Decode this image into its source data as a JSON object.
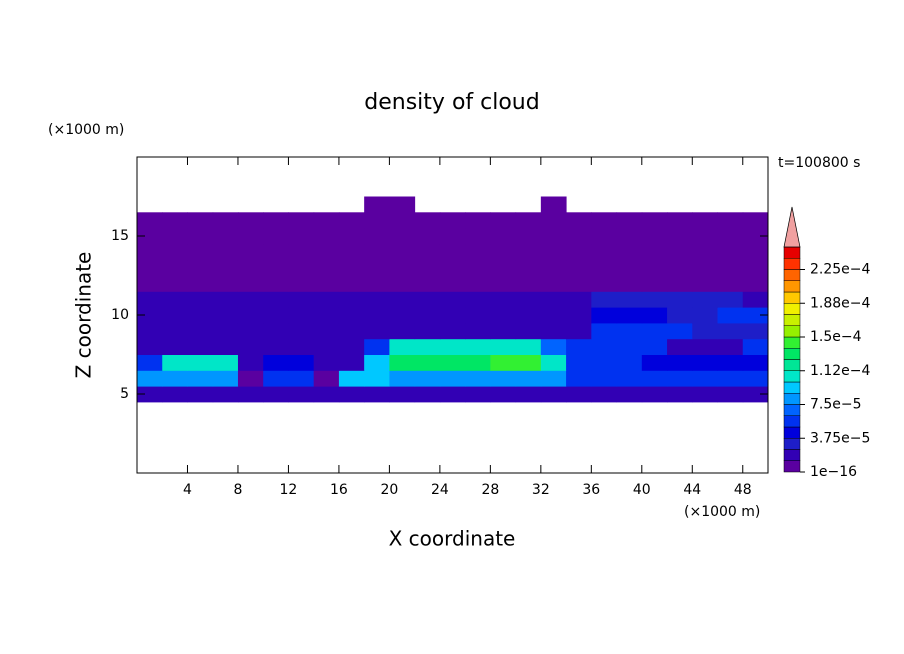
{
  "chart_data": {
    "type": "contour",
    "title": "density of cloud",
    "xlabel": "X coordinate",
    "ylabel": "Z coordinate",
    "xunit": "(×1000 m)",
    "yunit": "(×1000 m)",
    "annotation": "t=100800 s",
    "xlim": [
      0,
      50
    ],
    "ylim": [
      0,
      20
    ],
    "xticks": [
      4,
      8,
      12,
      16,
      20,
      24,
      28,
      32,
      36,
      40,
      44,
      48
    ],
    "yticks": [
      5,
      10,
      15
    ],
    "x": [
      1,
      3,
      5,
      7,
      9,
      11,
      13,
      15,
      17,
      19,
      21,
      23,
      25,
      27,
      29,
      31,
      33,
      35,
      37,
      39,
      41,
      43,
      45,
      47,
      49
    ],
    "z": [
      5,
      6,
      7,
      8,
      9,
      10,
      11,
      12,
      13,
      14,
      15,
      16,
      17
    ],
    "values": [
      [
        2e-05,
        2e-05,
        2e-05,
        2e-05,
        2e-05,
        2e-05,
        2e-05,
        2e-05,
        2e-05,
        2e-05,
        2e-05,
        2e-05,
        2e-05,
        2e-05,
        2e-05,
        2e-05,
        2e-05,
        2e-05,
        2e-05,
        2e-05,
        2e-05,
        2e-05,
        2e-05,
        2e-05,
        2e-05
      ],
      [
        8e-05,
        8e-05,
        8e-05,
        8e-05,
        5e-06,
        5e-05,
        5e-05,
        5e-06,
        9e-05,
        9e-05,
        8e-05,
        8e-05,
        8e-05,
        8e-05,
        8e-05,
        8e-05,
        8e-05,
        5e-05,
        5e-05,
        5e-05,
        5e-05,
        5e-05,
        5e-05,
        5e-05,
        5e-05
      ],
      [
        6e-05,
        0.00011,
        0.00011,
        0.00011,
        2e-05,
        4e-05,
        4e-05,
        2e-05,
        2e-05,
        9e-05,
        0.000125,
        0.000125,
        0.000125,
        0.000125,
        0.00014,
        0.00014,
        0.0001,
        6e-05,
        6e-05,
        6e-05,
        4e-05,
        4e-05,
        4e-05,
        4e-05,
        4e-05
      ],
      [
        2e-05,
        2e-05,
        2e-05,
        2e-05,
        2e-05,
        2e-05,
        2e-05,
        2e-05,
        2e-05,
        5e-05,
        0.0001,
        0.0001,
        0.0001,
        0.0001,
        0.0001,
        0.0001,
        7e-05,
        5e-05,
        5e-05,
        5e-05,
        5e-05,
        2e-05,
        2e-05,
        2e-05,
        6e-05
      ],
      [
        2e-05,
        2e-05,
        2e-05,
        2e-05,
        2e-05,
        2e-05,
        2e-05,
        2e-05,
        2e-05,
        2e-05,
        2e-05,
        2e-05,
        2e-05,
        2e-05,
        2e-05,
        2e-05,
        2e-05,
        2e-05,
        5e-05,
        5e-05,
        5e-05,
        5e-05,
        3e-05,
        3e-05,
        3e-05
      ],
      [
        2e-05,
        2e-05,
        2e-05,
        2e-05,
        2e-05,
        2e-05,
        2e-05,
        2e-05,
        2e-05,
        2e-05,
        2e-05,
        2e-05,
        2e-05,
        2e-05,
        2e-05,
        2e-05,
        2e-05,
        2e-05,
        4e-05,
        4e-05,
        4e-05,
        3e-05,
        3e-05,
        6e-05,
        6e-05
      ],
      [
        2e-05,
        2e-05,
        2e-05,
        2e-05,
        2e-05,
        2e-05,
        2e-05,
        2e-05,
        2e-05,
        2e-05,
        2e-05,
        2e-05,
        2e-05,
        2e-05,
        2e-05,
        2e-05,
        2e-05,
        2e-05,
        3e-05,
        3e-05,
        3e-05,
        3e-05,
        3e-05,
        3e-05,
        2e-05
      ],
      [
        5e-06,
        5e-06,
        5e-06,
        5e-06,
        5e-06,
        5e-06,
        5e-06,
        5e-06,
        5e-06,
        5e-06,
        5e-06,
        5e-06,
        5e-06,
        5e-06,
        5e-06,
        5e-06,
        5e-06,
        5e-06,
        5e-06,
        5e-06,
        5e-06,
        5e-06,
        5e-06,
        5e-06,
        5e-06
      ],
      [
        5e-06,
        5e-06,
        5e-06,
        5e-06,
        5e-06,
        5e-06,
        5e-06,
        5e-06,
        5e-06,
        5e-06,
        5e-06,
        5e-06,
        5e-06,
        5e-06,
        5e-06,
        5e-06,
        5e-06,
        5e-06,
        5e-06,
        5e-06,
        5e-06,
        5e-06,
        5e-06,
        5e-06,
        5e-06
      ],
      [
        5e-06,
        5e-06,
        5e-06,
        5e-06,
        5e-06,
        5e-06,
        5e-06,
        5e-06,
        5e-06,
        5e-06,
        5e-06,
        5e-06,
        5e-06,
        5e-06,
        5e-06,
        5e-06,
        5e-06,
        5e-06,
        5e-06,
        5e-06,
        5e-06,
        5e-06,
        5e-06,
        5e-06,
        5e-06
      ],
      [
        5e-06,
        5e-06,
        5e-06,
        5e-06,
        5e-06,
        5e-06,
        5e-06,
        5e-06,
        5e-06,
        5e-06,
        5e-06,
        5e-06,
        5e-06,
        5e-06,
        5e-06,
        5e-06,
        5e-06,
        5e-06,
        5e-06,
        5e-06,
        5e-06,
        5e-06,
        5e-06,
        5e-06,
        5e-06
      ],
      [
        5e-06,
        5e-06,
        5e-06,
        5e-06,
        5e-06,
        5e-06,
        5e-06,
        5e-06,
        5e-06,
        5e-06,
        5e-06,
        5e-06,
        5e-06,
        5e-06,
        5e-06,
        5e-06,
        5e-06,
        5e-06,
        5e-06,
        5e-06,
        5e-06,
        5e-06,
        5e-06,
        5e-06,
        5e-06
      ],
      [
        null,
        null,
        null,
        null,
        null,
        null,
        null,
        null,
        null,
        5e-06,
        5e-06,
        null,
        null,
        null,
        null,
        null,
        5e-06,
        null,
        null,
        null,
        null,
        null,
        null,
        null,
        null
      ]
    ],
    "colorbar": {
      "levels": [
        1e-16,
        1.25e-05,
        2.5e-05,
        3.75e-05,
        5e-05,
        6.25e-05,
        7.5e-05,
        8.75e-05,
        0.0001,
        0.0001125,
        0.000125,
        0.0001375,
        0.00015,
        0.0001625,
        0.000175,
        0.0001875,
        0.0002,
        0.0002125,
        0.000225,
        0.0002375,
        0.00025
      ],
      "colors": [
        "#5a00a0",
        "#3200b4",
        "#1e1ec8",
        "#0000dc",
        "#0032f0",
        "#0064ff",
        "#0096ff",
        "#00c8ff",
        "#00e6c8",
        "#00e696",
        "#00e664",
        "#32f032",
        "#96f000",
        "#c8f000",
        "#f0f000",
        "#ffc800",
        "#ff9600",
        "#ff6400",
        "#ff3200",
        "#e60000"
      ],
      "over_color": "#f0a0a0",
      "ticks": [
        {
          "value": 1e-16,
          "label": "1e−16"
        },
        {
          "value": 3.75e-05,
          "label": "3.75e−5"
        },
        {
          "value": 7.5e-05,
          "label": "7.5e−5"
        },
        {
          "value": 0.0001125,
          "label": "1.12e−4"
        },
        {
          "value": 0.00015,
          "label": "1.5e−4"
        },
        {
          "value": 0.0001875,
          "label": "1.88e−4"
        },
        {
          "value": 0.000225,
          "label": "2.25e−4"
        }
      ]
    }
  }
}
